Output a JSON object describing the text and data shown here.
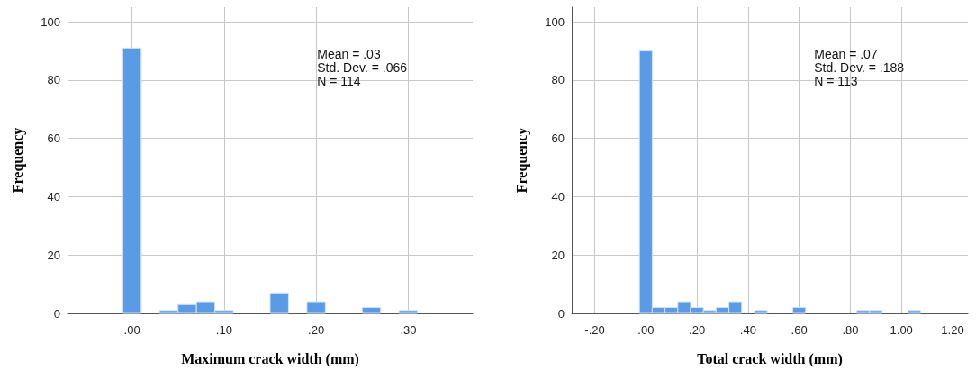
{
  "chart_data": [
    {
      "type": "histogram",
      "xlabel": "Maximum crack width (mm)",
      "ylabel": "Frequency",
      "annotations": [
        "Mean = .03",
        "Std. Dev. = .066",
        "N = 114"
      ],
      "bins": [
        -0.01,
        0.01,
        0.03,
        0.05,
        0.07,
        0.09,
        0.11,
        0.13,
        0.15,
        0.17,
        0.19,
        0.21,
        0.23,
        0.25,
        0.27,
        0.29,
        0.31
      ],
      "values": [
        91,
        0,
        1,
        3,
        4,
        1,
        0,
        0,
        7,
        0,
        4,
        0,
        0,
        2,
        0,
        1
      ],
      "color": "#5b9be6",
      "xlim": [
        -0.07,
        0.37
      ],
      "xticks": [
        {
          "value": 0,
          "label": ".00"
        },
        {
          "value": 0.1,
          "label": ".10"
        },
        {
          "value": 0.2,
          "label": ".20"
        },
        {
          "value": 0.3,
          "label": ".30"
        }
      ],
      "ylim": [
        0,
        105
      ],
      "yticks": [
        0,
        20,
        40,
        60,
        80,
        100
      ],
      "grid": true
    },
    {
      "type": "histogram",
      "xlabel": "Total crack width (mm)",
      "ylabel": "Frequency",
      "annotations": [
        "Mean = .07",
        "Std. Dev. = .188",
        "N = 113"
      ],
      "bins": [
        -0.025,
        0.025,
        0.075,
        0.125,
        0.175,
        0.225,
        0.275,
        0.325,
        0.375,
        0.425,
        0.475,
        0.525,
        0.575,
        0.625,
        0.675,
        0.725,
        0.775,
        0.825,
        0.875,
        0.925,
        0.975,
        1.025,
        1.075
      ],
      "values": [
        90,
        2,
        2,
        4,
        2,
        1,
        2,
        4,
        0,
        1,
        0,
        0,
        2,
        0,
        0,
        0,
        0,
        1,
        1,
        0,
        0,
        1
      ],
      "color": "#5b9be6",
      "xlim": [
        -0.29,
        1.26
      ],
      "xticks": [
        {
          "value": -0.2,
          "label": "-.20"
        },
        {
          "value": 0,
          "label": ".00"
        },
        {
          "value": 0.2,
          "label": ".20"
        },
        {
          "value": 0.4,
          "label": ".40"
        },
        {
          "value": 0.6,
          "label": ".60"
        },
        {
          "value": 0.8,
          "label": ".80"
        },
        {
          "value": 1,
          "label": "1.00"
        },
        {
          "value": 1.2,
          "label": "1.20"
        }
      ],
      "ylim": [
        0,
        105
      ],
      "yticks": [
        0,
        20,
        40,
        60,
        80,
        100
      ],
      "grid": true
    }
  ]
}
